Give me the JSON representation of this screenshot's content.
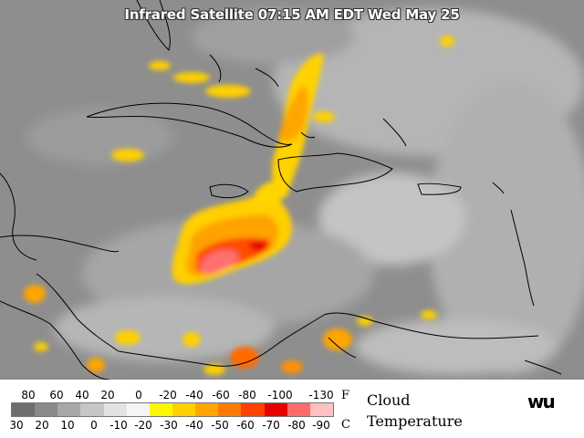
{
  "title": "Infrared Satellite 07:15 AM EDT Wed May 25",
  "legend": {
    "fahrenheit_labels": [
      "80",
      "60",
      "40",
      "20",
      "0",
      "-20",
      "-40",
      "-60",
      "-80",
      "-100",
      "-130"
    ],
    "fahrenheit_unit": "F",
    "celsius_labels": [
      "30",
      "20",
      "10",
      "0",
      "-10",
      "-20",
      "-30",
      "-40",
      "-50",
      "-60",
      "-70",
      "-80",
      "-90"
    ],
    "celsius_unit": "C",
    "title_line1": "Cloud",
    "title_line2": "Temperature",
    "colors": [
      "#6e6e6e",
      "#8a8a8a",
      "#a8a8a8",
      "#c6c6c6",
      "#e2e2e2",
      "#f5f5f5",
      "#fff700",
      "#ffd000",
      "#ffa600",
      "#ff7a00",
      "#ff4000",
      "#e60000",
      "#ff6a6a",
      "#ffc0c0"
    ]
  },
  "logo": "wu"
}
